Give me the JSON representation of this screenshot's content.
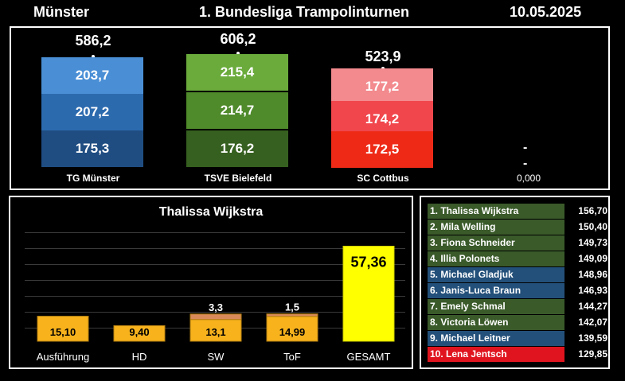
{
  "header": {
    "location": "Münster",
    "event": "1. Bundesliga Trampolinturnen",
    "date": "10.05.2025"
  },
  "teams": [
    {
      "name": "TG Münster",
      "total": "586,2",
      "segments": [
        "203,7",
        "207,2",
        "175,3"
      ],
      "colors": [
        "#4a8fd6",
        "#2c6aae",
        "#1f4d82"
      ]
    },
    {
      "name": "TSVE Bielefeld",
      "total": "606,2",
      "segments": [
        "215,4",
        "214,7",
        "176,2"
      ],
      "colors": [
        "#6aab3c",
        "#4f8a2b",
        "#36601f"
      ]
    },
    {
      "name": "SC Cottbus",
      "total": "523,9",
      "segments": [
        "177,2",
        "174,2",
        "172,5"
      ],
      "colors": [
        "#f28a8e",
        "#f0464c",
        "#ee2a17"
      ]
    },
    {
      "name": "0,000",
      "total": "",
      "segments": [
        "-",
        "-"
      ],
      "colors": []
    }
  ],
  "athlete": {
    "title": "Thalissa Wijkstra",
    "chart_data": {
      "type": "bar",
      "categories": [
        "Ausführung",
        "HD",
        "SW",
        "ToF",
        "GESAMT"
      ],
      "series": [
        {
          "values": [
            15.1,
            9.4,
            13.1,
            14.99,
            57.36
          ]
        },
        {
          "values": [
            0,
            0,
            3.3,
            1.5,
            0
          ]
        }
      ],
      "labels": [
        "15,10",
        "9,40",
        "13,1",
        "14,99",
        "57,36"
      ],
      "top_labels": [
        "",
        "",
        "3,3",
        "1,5",
        ""
      ],
      "ylim": [
        0,
        72
      ],
      "colors": {
        "main": "#f7b21c",
        "total": "#ffff00",
        "bonus": "#d98a5a"
      }
    }
  },
  "ranking": [
    {
      "name": "1. Thalissa Wijkstra",
      "score": "156,70",
      "style": "green"
    },
    {
      "name": "2. Mila Welling",
      "score": "150,40",
      "style": "green"
    },
    {
      "name": "3. Fiona Schneider",
      "score": "149,73",
      "style": "green"
    },
    {
      "name": "4. Illia Polonets",
      "score": "149,09",
      "style": "green"
    },
    {
      "name": "5. Michael Gladjuk",
      "score": "148,96",
      "style": "blue"
    },
    {
      "name": "6. Janis-Luca Braun",
      "score": "146,93",
      "style": "blue"
    },
    {
      "name": "7. Emely Schmal",
      "score": "144,27",
      "style": "green"
    },
    {
      "name": "8. Victoria Löwen",
      "score": "142,07",
      "style": "green"
    },
    {
      "name": "9. Michael Leitner",
      "score": "139,59",
      "style": "blue"
    },
    {
      "name": "10. Lena Jentsch",
      "score": "129,85",
      "style": "red"
    }
  ]
}
